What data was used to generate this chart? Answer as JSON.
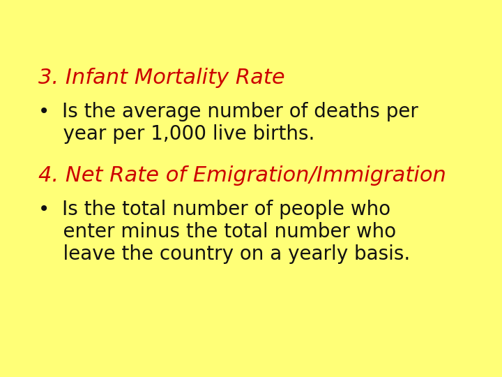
{
  "background_color": "#FFFF77",
  "heading1": "3. Infant Mortality Rate",
  "heading1_color": "#CC0000",
  "bullet1_line1": "•  Is the average number of deaths per",
  "bullet1_line2": "    year per 1,000 live births.",
  "bullet_color": "#111111",
  "heading2": "4. Net Rate of Emigration/Immigration",
  "heading2_color": "#CC0000",
  "bullet2_line1": "•  Is the total number of people who",
  "bullet2_line2": "    enter minus the total number who",
  "bullet2_line3": "    leave the country on a yearly basis.",
  "heading_fontsize": 22,
  "bullet_fontsize": 20,
  "figsize": [
    7.2,
    5.4
  ],
  "dpi": 100
}
